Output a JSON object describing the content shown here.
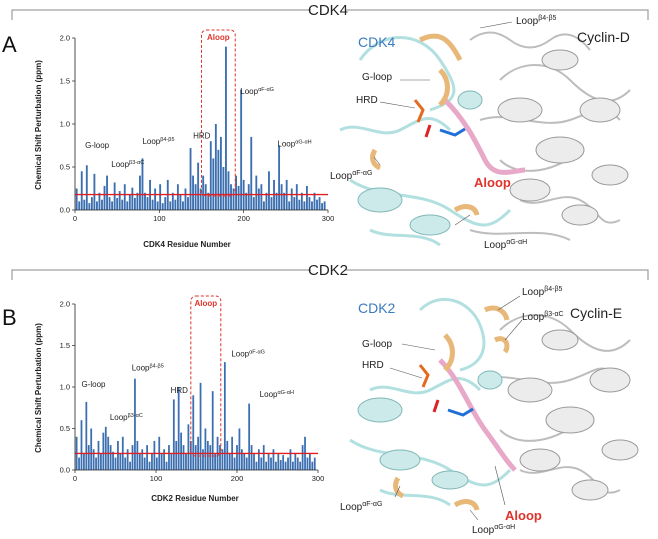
{
  "panels": [
    {
      "letter": "A",
      "section_title": "CDK4",
      "chart_data": {
        "type": "bar",
        "xlabel": "CDK4 Residue Number",
        "ylabel": "Chemical Shift Perturbation (ppm)",
        "xlim": [
          0,
          300
        ],
        "ylim": [
          0,
          2.0
        ],
        "xticks": [
          "0",
          "100",
          "200",
          "300"
        ],
        "yticks": [
          "0.0",
          "0.5",
          "1.0",
          "1.5",
          "2.0"
        ],
        "threshold": 0.18,
        "bar_color": "#3b6fb0",
        "threshold_color": "#e02020",
        "highlight_box": {
          "label": "Aloop",
          "x_range": [
            150,
            190
          ]
        },
        "annotations": [
          {
            "text": "G-loop",
            "sup": "",
            "x": 12,
            "y": 0.72
          },
          {
            "text": "Loop",
            "sup": "β3-αC",
            "x": 43,
            "y": 0.5
          },
          {
            "text": "Loop",
            "sup": "β4-β5",
            "x": 80,
            "y": 0.77
          },
          {
            "text": "HRD",
            "sup": "",
            "x": 140,
            "y": 0.83
          },
          {
            "text": "Loop",
            "sup": "αF-αG",
            "x": 196,
            "y": 1.35
          },
          {
            "text": "Loop",
            "sup": "αG-αH",
            "x": 240,
            "y": 0.74
          }
        ],
        "x": [
          2,
          5,
          8,
          11,
          14,
          17,
          20,
          23,
          26,
          29,
          32,
          35,
          38,
          41,
          44,
          47,
          50,
          53,
          56,
          59,
          62,
          65,
          68,
          71,
          74,
          77,
          80,
          83,
          86,
          89,
          92,
          95,
          98,
          101,
          104,
          107,
          110,
          113,
          116,
          119,
          122,
          125,
          128,
          131,
          134,
          137,
          140,
          143,
          146,
          149,
          152,
          155,
          158,
          161,
          164,
          167,
          170,
          173,
          176,
          179,
          182,
          185,
          188,
          191,
          194,
          197,
          200,
          203,
          206,
          209,
          212,
          215,
          218,
          221,
          224,
          227,
          230,
          233,
          236,
          239,
          242,
          245,
          248,
          251,
          254,
          257,
          260,
          263,
          266,
          269,
          272,
          275,
          278,
          281,
          284,
          287,
          290,
          293,
          296
        ],
        "values": [
          0.25,
          0.1,
          0.45,
          0.12,
          0.52,
          0.08,
          0.15,
          0.42,
          0.1,
          0.2,
          0.12,
          0.28,
          0.4,
          0.15,
          0.1,
          0.32,
          0.14,
          0.22,
          0.12,
          0.3,
          0.1,
          0.18,
          0.26,
          0.14,
          0.2,
          0.4,
          0.6,
          0.2,
          0.15,
          0.35,
          0.12,
          0.25,
          0.1,
          0.3,
          0.08,
          0.15,
          0.35,
          0.1,
          0.2,
          0.12,
          0.3,
          0.18,
          0.1,
          0.25,
          0.15,
          0.72,
          0.4,
          0.3,
          0.55,
          0.25,
          0.4,
          0.3,
          0.2,
          0.8,
          0.6,
          1.0,
          0.7,
          0.85,
          0.5,
          1.9,
          0.45,
          0.3,
          0.25,
          0.4,
          0.28,
          1.4,
          0.35,
          0.2,
          0.3,
          0.85,
          0.15,
          0.4,
          0.25,
          0.3,
          0.1,
          0.2,
          0.45,
          0.15,
          0.35,
          0.2,
          0.75,
          0.3,
          0.2,
          0.35,
          0.1,
          0.25,
          0.15,
          0.3,
          0.12,
          0.2,
          0.1,
          0.28,
          0.15,
          0.1,
          0.2,
          0.12,
          0.15,
          0.08,
          0.1
        ]
      },
      "structure": {
        "protein_label": "CDK4",
        "partner_label": "Cyclin-D",
        "labels": [
          {
            "text": "Loop",
            "sup": "β4-β5"
          },
          {
            "text": "G-loop",
            "sup": ""
          },
          {
            "text": "HRD",
            "sup": ""
          },
          {
            "text": "Loop",
            "sup": "αF-αG"
          },
          {
            "text": "Aloop",
            "sup": ""
          },
          {
            "text": "Loop",
            "sup": "αG-αH"
          }
        ]
      }
    },
    {
      "letter": "B",
      "section_title": "CDK2",
      "chart_data": {
        "type": "bar",
        "xlabel": "CDK2 Residue Number",
        "ylabel": "Chemical Shift Perturbation (ppm)",
        "xlim": [
          0,
          300
        ],
        "ylim": [
          0,
          2.0
        ],
        "xticks": [
          "0",
          "100",
          "200",
          "300"
        ],
        "yticks": [
          "0.0",
          "0.5",
          "1.0",
          "1.5",
          "2.0"
        ],
        "threshold": 0.2,
        "bar_color": "#3b6fb0",
        "threshold_color": "#e02020",
        "highlight_box": {
          "label": "Aloop",
          "x_range": [
            143,
            180
          ]
        },
        "annotations": [
          {
            "text": "G-loop",
            "sup": "",
            "x": 8,
            "y": 1.0
          },
          {
            "text": "Loop",
            "sup": "β3-αC",
            "x": 43,
            "y": 0.6
          },
          {
            "text": "Loop",
            "sup": "β4-β5",
            "x": 70,
            "y": 1.2
          },
          {
            "text": "HRD",
            "sup": "",
            "x": 118,
            "y": 0.93
          },
          {
            "text": "Loop",
            "sup": "αF-αG",
            "x": 193,
            "y": 1.37
          },
          {
            "text": "Loop",
            "sup": "αG-αH",
            "x": 228,
            "y": 0.88
          }
        ],
        "x": [
          2,
          5,
          8,
          11,
          14,
          17,
          20,
          23,
          26,
          29,
          32,
          35,
          38,
          41,
          44,
          47,
          50,
          53,
          56,
          59,
          62,
          65,
          68,
          71,
          74,
          77,
          80,
          83,
          86,
          89,
          92,
          95,
          98,
          101,
          104,
          107,
          110,
          113,
          116,
          119,
          122,
          125,
          128,
          131,
          134,
          137,
          140,
          143,
          146,
          149,
          152,
          155,
          158,
          161,
          164,
          167,
          170,
          173,
          176,
          179,
          182,
          185,
          188,
          191,
          194,
          197,
          200,
          203,
          206,
          209,
          212,
          215,
          218,
          221,
          224,
          227,
          230,
          233,
          236,
          239,
          242,
          245,
          248,
          251,
          254,
          257,
          260,
          263,
          266,
          269,
          272,
          275,
          278,
          281,
          284,
          287,
          290,
          293,
          296
        ],
        "values": [
          0.4,
          0.15,
          0.6,
          0.2,
          0.82,
          0.3,
          0.5,
          0.25,
          0.15,
          0.35,
          0.2,
          0.45,
          0.52,
          0.4,
          0.3,
          0.22,
          0.15,
          0.35,
          0.2,
          0.4,
          0.15,
          0.25,
          0.1,
          0.3,
          1.1,
          0.35,
          0.2,
          0.25,
          0.15,
          0.3,
          0.1,
          0.2,
          0.35,
          0.15,
          0.4,
          0.2,
          0.25,
          0.1,
          0.3,
          0.2,
          0.85,
          0.35,
          1.0,
          0.45,
          0.3,
          0.2,
          0.55,
          0.35,
          0.9,
          0.3,
          0.4,
          1.05,
          0.25,
          0.5,
          0.35,
          0.3,
          0.95,
          0.2,
          0.4,
          0.3,
          0.25,
          1.3,
          0.35,
          0.2,
          0.4,
          0.15,
          0.3,
          0.5,
          0.25,
          0.2,
          0.15,
          0.8,
          0.3,
          0.2,
          0.1,
          0.25,
          0.15,
          0.3,
          0.1,
          0.2,
          0.15,
          0.25,
          0.1,
          0.2,
          0.12,
          0.18,
          0.1,
          0.15,
          0.25,
          0.1,
          0.2,
          0.15,
          0.1,
          0.3,
          0.4,
          0.15,
          0.2,
          0.1,
          0.15
        ]
      },
      "structure": {
        "protein_label": "CDK2",
        "partner_label": "Cyclin-E",
        "labels": [
          {
            "text": "Loop",
            "sup": "β4-β5"
          },
          {
            "text": "Loop",
            "sup": "β3-αC"
          },
          {
            "text": "G-loop",
            "sup": ""
          },
          {
            "text": "HRD",
            "sup": ""
          },
          {
            "text": "Loop",
            "sup": "αF-αG"
          },
          {
            "text": "Aloop",
            "sup": ""
          },
          {
            "text": "Loop",
            "sup": "αG-αH"
          }
        ]
      }
    }
  ]
}
